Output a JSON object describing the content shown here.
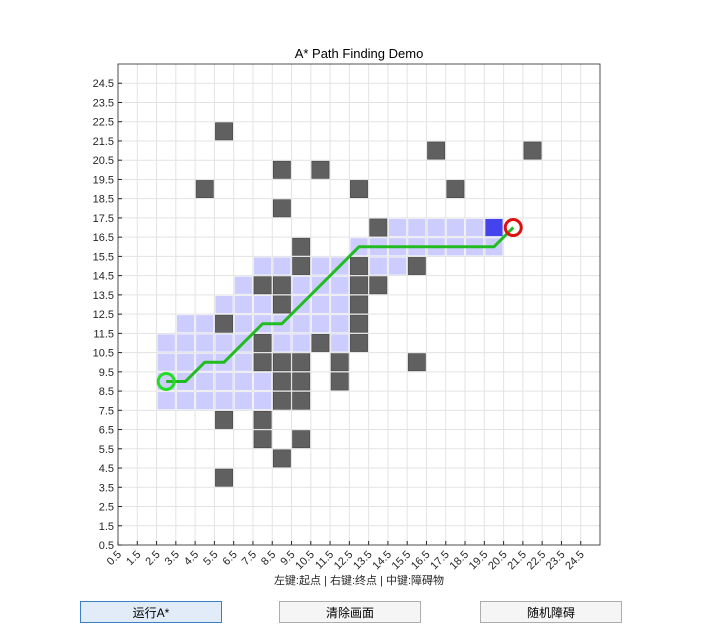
{
  "chart_data": {
    "type": "grid",
    "title": "A* Path Finding Demo",
    "xlabel": "左键:起点 | 右键:终点 | 中键:障碍物",
    "xlim": [
      0.5,
      25.5
    ],
    "ylim": [
      0.5,
      25.5
    ],
    "xticks": [
      0.5,
      1.5,
      2.5,
      3.5,
      4.5,
      5.5,
      6.5,
      7.5,
      8.5,
      9.5,
      10.5,
      11.5,
      12.5,
      13.5,
      14.5,
      15.5,
      16.5,
      17.5,
      18.5,
      19.5,
      20.5,
      21.5,
      22.5,
      23.5,
      24.5
    ],
    "yticks": [
      0.5,
      1.5,
      2.5,
      3.5,
      4.5,
      5.5,
      6.5,
      7.5,
      8.5,
      9.5,
      10.5,
      11.5,
      12.5,
      13.5,
      14.5,
      15.5,
      16.5,
      17.5,
      18.5,
      19.5,
      20.5,
      21.5,
      22.5,
      23.5,
      24.5
    ],
    "grid": true,
    "series": [
      {
        "name": "explored",
        "kind": "cells",
        "color": "#ccccff",
        "x": [
          15,
          16,
          17,
          18,
          19,
          13,
          14,
          15,
          16,
          17,
          18,
          19,
          20,
          8,
          9,
          11,
          12,
          14,
          15,
          7,
          10,
          11,
          12,
          6,
          7,
          8,
          10,
          11,
          12,
          4,
          5,
          7,
          8,
          9,
          10,
          11,
          12,
          3,
          4,
          5,
          6,
          7,
          9,
          10,
          12,
          3,
          4,
          5,
          6,
          7,
          3,
          4,
          5,
          6,
          7,
          8,
          3,
          4,
          5,
          6,
          7,
          8
        ],
        "y": [
          17,
          17,
          17,
          17,
          17,
          16,
          16,
          16,
          16,
          16,
          16,
          16,
          16,
          15,
          15,
          15,
          15,
          15,
          15,
          14,
          14,
          14,
          14,
          13,
          13,
          13,
          13,
          13,
          13,
          12,
          12,
          12,
          12,
          12,
          12,
          12,
          12,
          11,
          11,
          11,
          11,
          11,
          11,
          11,
          11,
          10,
          10,
          10,
          10,
          10,
          9,
          9,
          9,
          9,
          9,
          9,
          8,
          8,
          8,
          8,
          8,
          8
        ]
      },
      {
        "name": "obstacles",
        "kind": "cells",
        "color": "#606060",
        "x": [
          6,
          17,
          22,
          9,
          11,
          5,
          13,
          18,
          9,
          14,
          10,
          10,
          13,
          16,
          8,
          9,
          13,
          14,
          9,
          13,
          6,
          13,
          8,
          11,
          13,
          8,
          9,
          10,
          12,
          16,
          9,
          10,
          12,
          9,
          10,
          6,
          8,
          8,
          10,
          9,
          6
        ],
        "y": [
          22,
          21,
          21,
          20,
          20,
          19,
          19,
          19,
          18,
          17,
          16,
          15,
          15,
          15,
          14,
          14,
          14,
          14,
          13,
          13,
          12,
          12,
          11,
          11,
          11,
          10,
          10,
          10,
          10,
          10,
          9,
          9,
          9,
          8,
          8,
          7,
          7,
          6,
          6,
          5,
          4
        ]
      },
      {
        "name": "current",
        "kind": "cells",
        "color": "#4444ee",
        "x": [
          20
        ],
        "y": [
          17
        ]
      },
      {
        "name": "path",
        "kind": "line",
        "color": "#22bb22",
        "x": [
          3,
          4,
          5,
          6,
          7,
          8,
          9,
          10,
          11,
          12,
          13,
          14,
          15,
          16,
          17,
          18,
          19,
          20,
          21
        ],
        "y": [
          9,
          9,
          10,
          10,
          11,
          12,
          12,
          13,
          14,
          15,
          16,
          16,
          16,
          16,
          16,
          16,
          16,
          16,
          17
        ]
      },
      {
        "name": "start",
        "kind": "marker",
        "color": "#22dd22",
        "x": [
          3
        ],
        "y": [
          9
        ]
      },
      {
        "name": "goal",
        "kind": "marker",
        "color": "#dd1111",
        "x": [
          21
        ],
        "y": [
          17
        ]
      }
    ]
  },
  "buttons": [
    "运行A*",
    "清除画面",
    "随机障碍"
  ]
}
